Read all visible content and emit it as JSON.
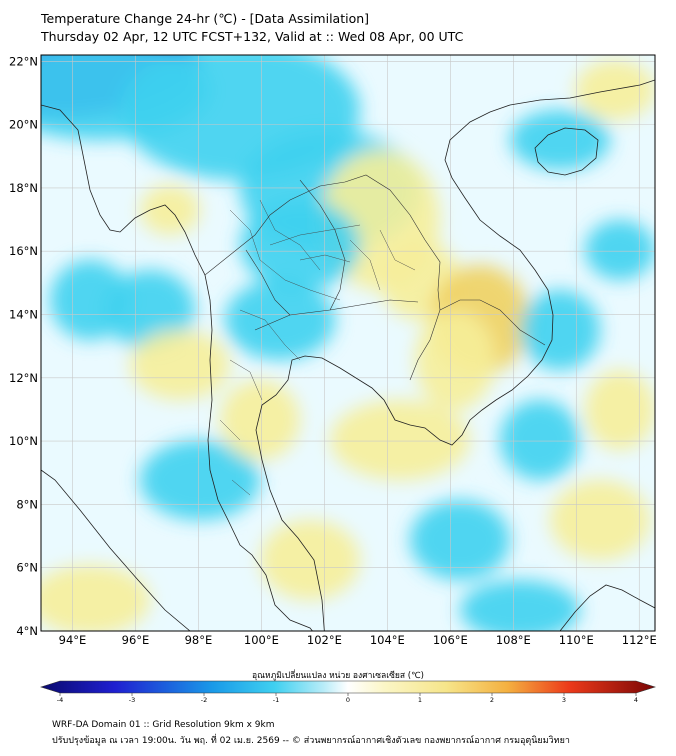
{
  "header": {
    "title_line1": "Temperature Change 24-hr (℃) - [Data Assimilation]",
    "title_line2": "Thursday 02 Apr, 12 UTC FCST+132, Valid at :: Wed 08 Apr, 00 UTC"
  },
  "map": {
    "lon_range": [
      93,
      112.5
    ],
    "lat_range": [
      4,
      22.2
    ],
    "lat_ticks": [
      "22°N",
      "20°N",
      "18°N",
      "16°N",
      "14°N",
      "12°N",
      "10°N",
      "8°N",
      "6°N",
      "4°N"
    ],
    "lon_ticks": [
      "94°E",
      "96°E",
      "98°E",
      "100°E",
      "102°E",
      "104°E",
      "106°E",
      "108°E",
      "110°E",
      "112°E"
    ],
    "field_colors": {
      "cold_strong": "#1a2fd6",
      "cold": "#3fd0f0",
      "neutral": "#eafaff",
      "warm": "#f6ee9a",
      "warm_strong": "#f0d060"
    }
  },
  "colorbar": {
    "label": "อุณหภูมิเปลี่ยนแปลง หน่วย องศาเซลเซียส (℃)",
    "ticks": [
      "-4",
      "-3",
      "-2",
      "-1",
      "0",
      "1",
      "2",
      "3",
      "4"
    ]
  },
  "footer": {
    "line1": "WRF-DA Domain 01 :: Grid Resolution 9km x 9km",
    "line2": "ปรับปรุงข้อมูล ณ เวลา 19:00น. วัน พฤ. ที่ 02 เม.ย. 2569 -- © ส่วนพยากรณ์อากาศเชิงตัวเลข กองพยากรณ์อากาศ กรมอุตุนิยมวิทยา"
  }
}
